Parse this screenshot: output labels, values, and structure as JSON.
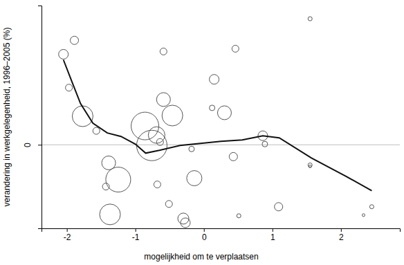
{
  "chart_data": {
    "type": "scatter",
    "x_label": "mogelijkheid om te verplaatsen",
    "y_label": "verandering in werkgelegenheid, 1996–2005 (%)",
    "xlim": [
      -2.37,
      2.86
    ],
    "ylim": [
      -12,
      20
    ],
    "xticks": [
      -2,
      -1,
      0,
      1,
      2
    ],
    "yticks": [
      0
    ],
    "grid": true,
    "series": [
      {
        "type": "scatter",
        "marker": "circle",
        "color": "#555555",
        "x": [
          -2.05,
          -1.89,
          -1.97,
          -1.77,
          -1.57,
          -1.39,
          -1.43,
          -1.25,
          -1.37,
          -0.86,
          -0.76,
          -0.69,
          -0.64,
          -0.59,
          -0.46,
          -0.59,
          -0.68,
          -0.51,
          -0.3,
          -0.27,
          -0.18,
          -0.14,
          0.12,
          0.15,
          0.3,
          0.43,
          0.46,
          0.51,
          0.86,
          0.89,
          1.09,
          1.55,
          1.55,
          1.55,
          2.33,
          2.45
        ],
        "values": [
          13.0,
          15.0,
          8.2,
          4.1,
          2.0,
          -2.6,
          -6.0,
          -5.0,
          -10.0,
          2.7,
          -0.1,
          1.4,
          0.4,
          6.5,
          4.2,
          13.4,
          -5.7,
          -8.5,
          -10.6,
          -11.2,
          -0.6,
          -4.8,
          5.3,
          9.4,
          4.6,
          -1.7,
          13.8,
          -10.2,
          1.3,
          0.1,
          -8.9,
          18.1,
          -2.9,
          -3.1,
          -10.1,
          -8.9
        ],
        "sizes": [
          49,
          36,
          25,
          225,
          25,
          100,
          25,
          324,
          225,
          400,
          484,
          144,
          25,
          100,
          225,
          25,
          25,
          25,
          64,
          49,
          16,
          121,
          16,
          49,
          100,
          36,
          25,
          9,
          49,
          16,
          36,
          9,
          9,
          4,
          4,
          9
        ]
      },
      {
        "type": "line",
        "line_style": "solid",
        "color": "#111111",
        "x": [
          -2.05,
          -1.92,
          -1.8,
          -1.62,
          -1.41,
          -1.21,
          -1.0,
          -0.85,
          -0.65,
          -0.35,
          -0.05,
          0.25,
          0.56,
          0.86,
          1.1,
          1.57,
          2.07,
          2.45
        ],
        "values": [
          12.2,
          8.9,
          5.9,
          3.1,
          1.7,
          1.2,
          0.1,
          -1.2,
          -0.8,
          -0.1,
          0.2,
          0.5,
          0.7,
          1.3,
          1.0,
          -1.9,
          -4.5,
          -6.6
        ]
      }
    ]
  }
}
